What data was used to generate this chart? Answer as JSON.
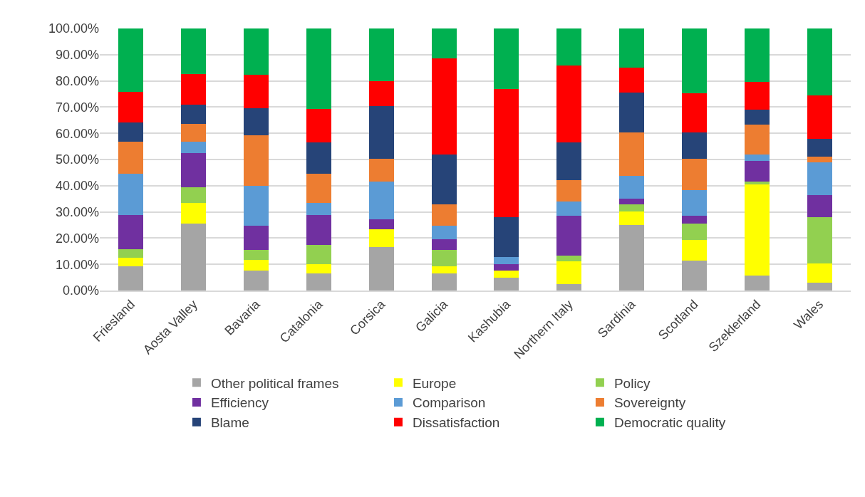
{
  "chart_data": {
    "type": "bar",
    "stacked": true,
    "categories": [
      "Friesland",
      "Aosta Valley",
      "Bavaria",
      "Catalonia",
      "Corsica",
      "Galicia",
      "Kashubia",
      "Northern Italy",
      "Sardinia",
      "Scotland",
      "Szeklerland",
      "Wales"
    ],
    "series": [
      {
        "name": "Other political frames",
        "color": "#a5a5a5",
        "values": [
          9.3,
          25.5,
          7.6,
          6.4,
          16.5,
          6.5,
          4.8,
          2.5,
          24.9,
          11.5,
          5.7,
          3.1
        ]
      },
      {
        "name": "Europe",
        "color": "#ffff00",
        "values": [
          3.1,
          8.0,
          4.1,
          3.7,
          7.0,
          2.8,
          2.7,
          8.6,
          5.3,
          7.8,
          34.8,
          7.3
        ]
      },
      {
        "name": "Policy",
        "color": "#92d050",
        "values": [
          3.3,
          5.8,
          3.8,
          7.4,
          0,
          6.2,
          0,
          2.3,
          2.6,
          6.2,
          1.0,
          17.5
        ]
      },
      {
        "name": "Efficiency",
        "color": "#7030a0",
        "values": [
          13.2,
          13.2,
          9.1,
          11.4,
          3.8,
          4.1,
          2.6,
          15.0,
          2.3,
          3.1,
          7.9,
          8.6
        ]
      },
      {
        "name": "Comparison",
        "color": "#5b9bd5",
        "values": [
          15.6,
          4.4,
          15.3,
          4.5,
          14.2,
          5.1,
          2.6,
          5.6,
          8.6,
          9.7,
          2.6,
          12.3
        ]
      },
      {
        "name": "Sovereignty",
        "color": "#ed7d31",
        "values": [
          12.4,
          6.6,
          19.3,
          11.3,
          8.8,
          8.3,
          0,
          8.2,
          16.7,
          12.0,
          11.3,
          2.4
        ]
      },
      {
        "name": "Blame",
        "color": "#264478",
        "values": [
          7.2,
          7.4,
          10.3,
          11.8,
          20.2,
          18.8,
          15.4,
          14.3,
          15.2,
          10.0,
          5.6,
          6.7
        ]
      },
      {
        "name": "Dissatisfaction",
        "color": "#ff0000",
        "values": [
          11.8,
          11.6,
          12.9,
          12.9,
          9.4,
          36.8,
          48.8,
          29.4,
          9.5,
          15.1,
          10.7,
          16.5
        ]
      },
      {
        "name": "Democratic quality",
        "color": "#00b050",
        "values": [
          24.1,
          17.5,
          17.6,
          30.6,
          20.1,
          11.4,
          23.1,
          14.1,
          14.9,
          24.6,
          20.4,
          25.6
        ]
      }
    ],
    "ylim": [
      0,
      100
    ],
    "yticks": [
      {
        "value": 0,
        "label": "0.00%"
      },
      {
        "value": 10,
        "label": "10.00%"
      },
      {
        "value": 20,
        "label": "20.00%"
      },
      {
        "value": 30,
        "label": "30.00%"
      },
      {
        "value": 40,
        "label": "40.00%"
      },
      {
        "value": 50,
        "label": "50.00%"
      },
      {
        "value": 60,
        "label": "60.00%"
      },
      {
        "value": 70,
        "label": "70.00%"
      },
      {
        "value": 80,
        "label": "80.00%"
      },
      {
        "value": 90,
        "label": "90.00%"
      },
      {
        "value": 100,
        "label": "100.00%"
      }
    ],
    "grid": "y",
    "legend": "bottom"
  }
}
